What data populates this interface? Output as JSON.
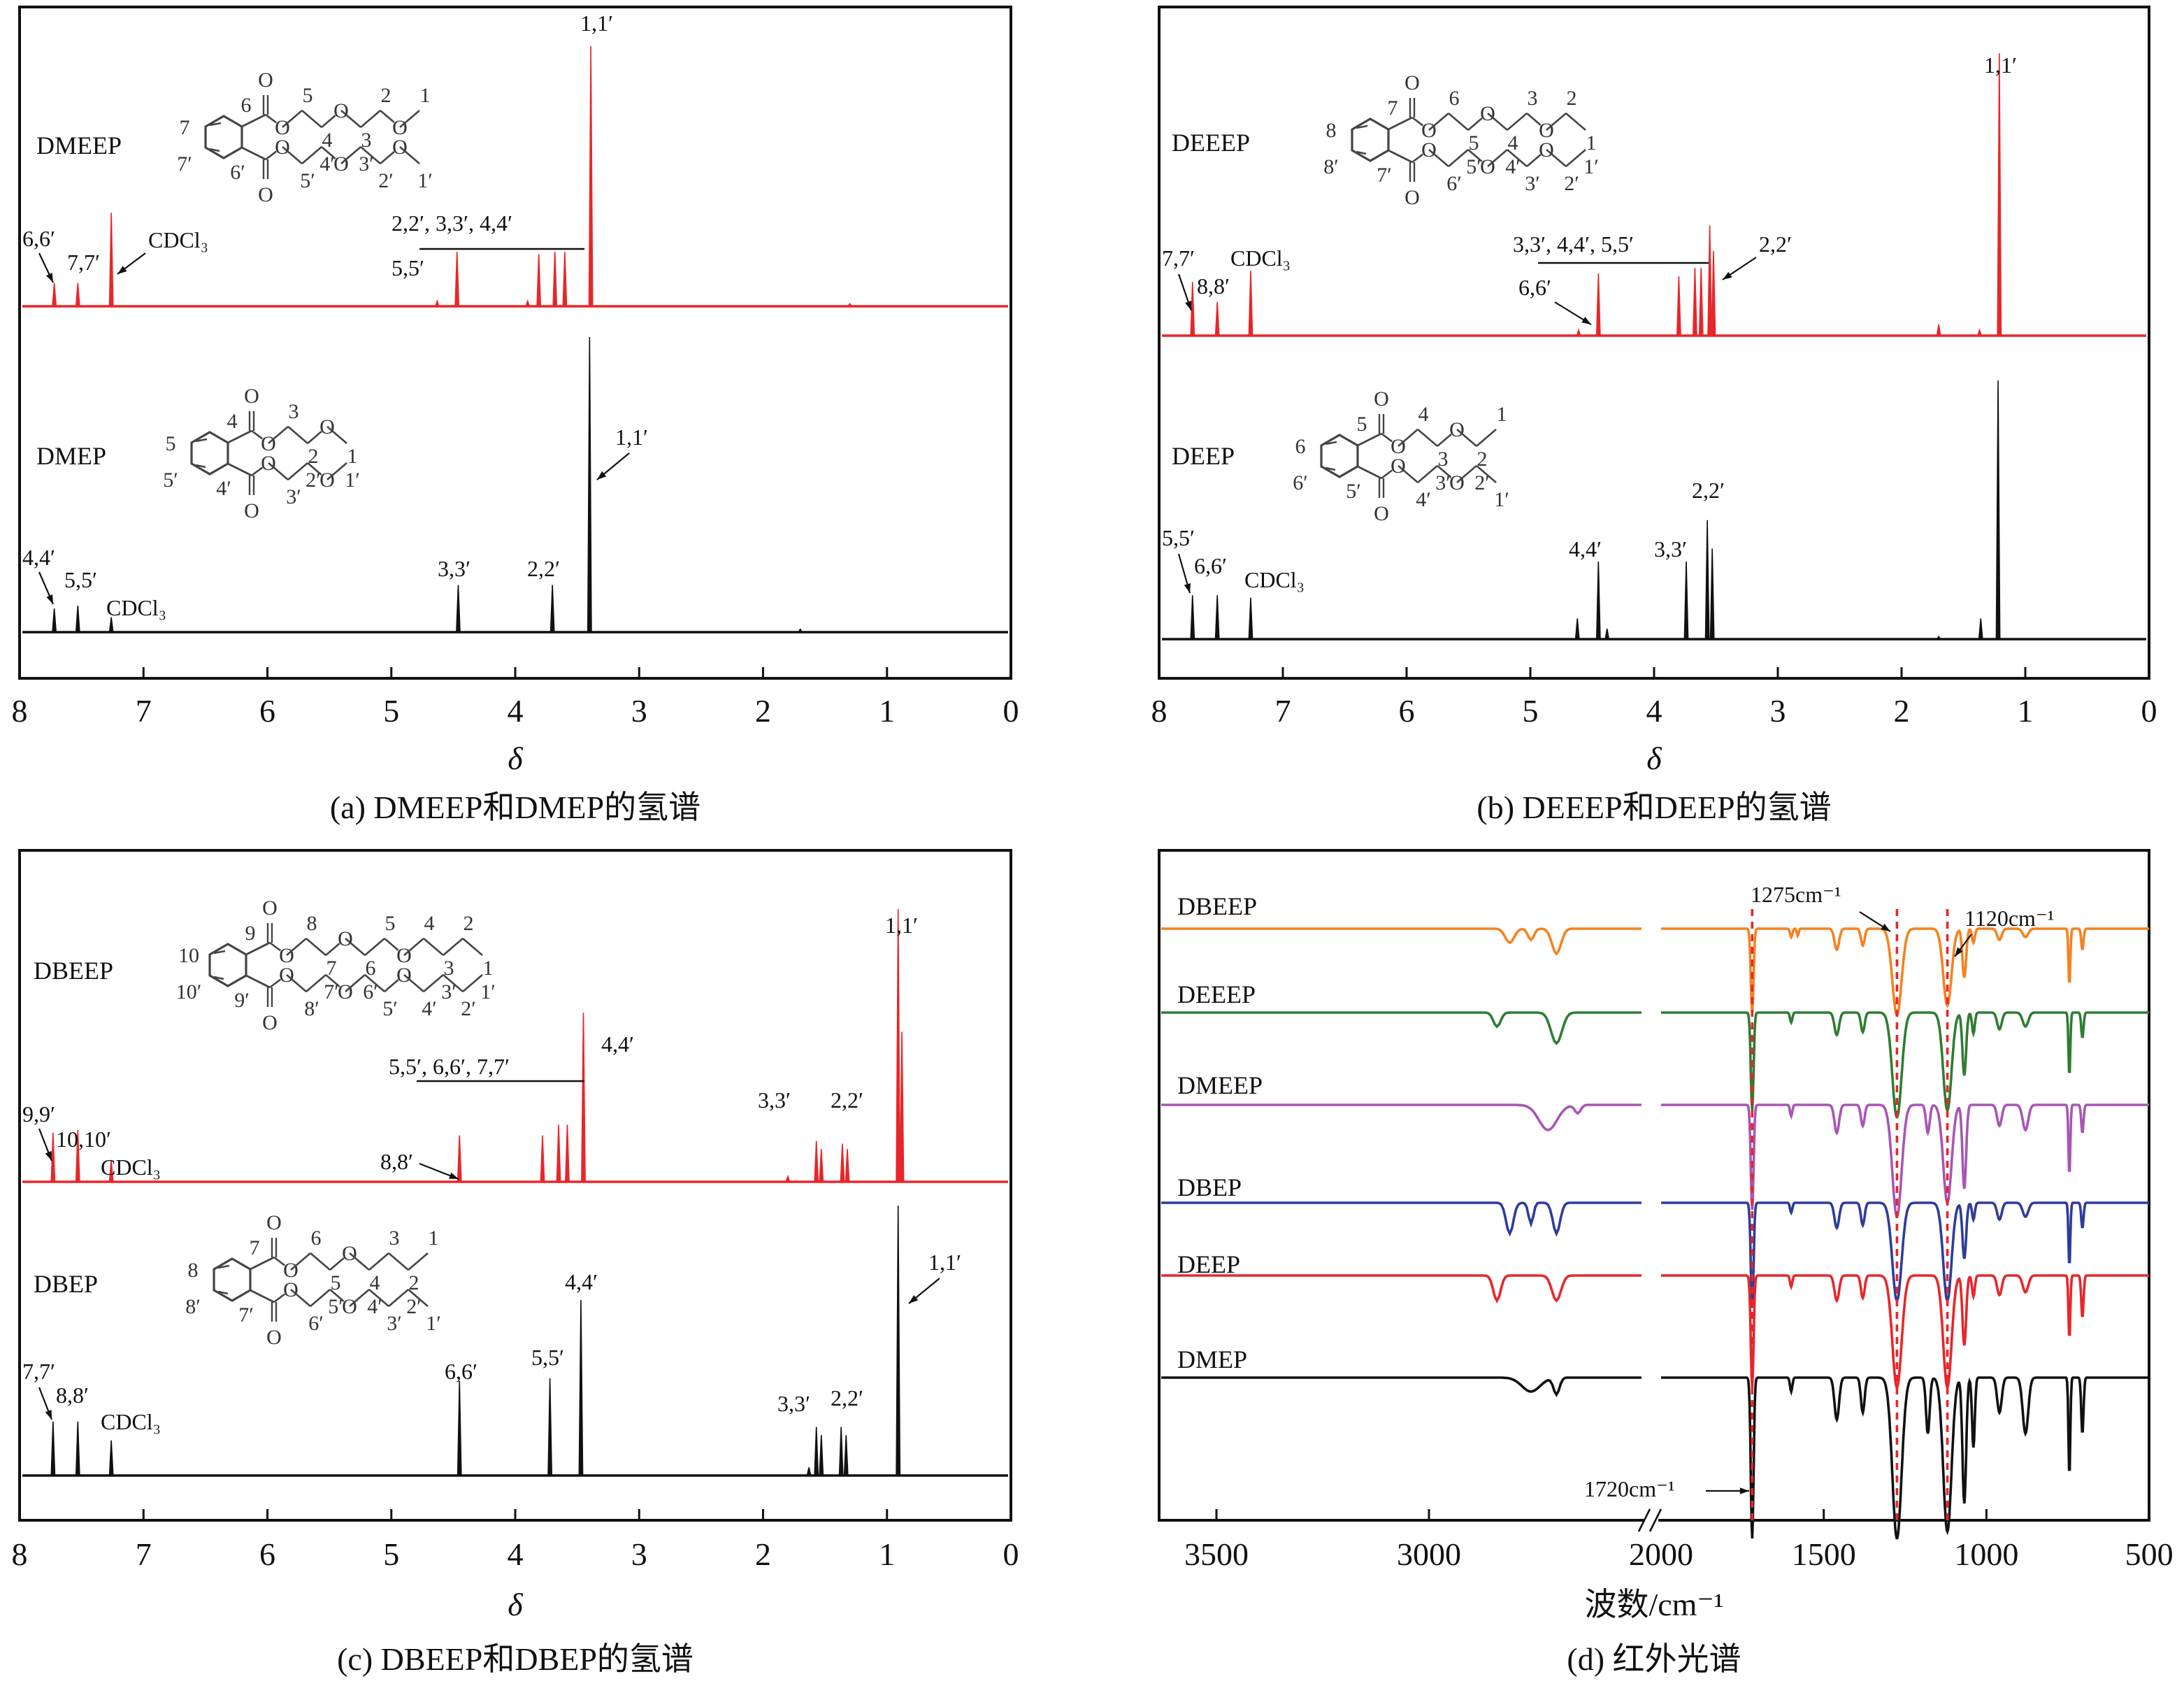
{
  "chart_data": [
    {
      "type": "line",
      "panel": "a",
      "caption": "(a) DMEEP和DMEP的氢谱",
      "xlabel": "δ",
      "xlim": [
        8,
        0
      ],
      "xticks": [
        "8",
        "7",
        "6",
        "5",
        "4",
        "3",
        "2",
        "1",
        "0"
      ],
      "series": [
        {
          "name": "DMEEP",
          "color": "#e8262a",
          "peaks": [
            [
              7.72,
              9
            ],
            [
              7.53,
              9
            ],
            [
              7.26,
              36
            ],
            [
              4.63,
              2
            ],
            [
              4.47,
              21
            ],
            [
              3.9,
              2
            ],
            [
              3.81,
              20
            ],
            [
              3.68,
              21
            ],
            [
              3.6,
              21
            ],
            [
              3.39,
              100
            ],
            [
              1.3,
              1
            ]
          ],
          "structure": {
            "ring": [
              "6",
              "7",
              "7′",
              "6′"
            ],
            "upper": [
              "O",
              "5",
              "4",
              "O",
              "3",
              "2",
              "O",
              "1"
            ],
            "lower": [
              "O",
              "5′",
              "4′",
              "O",
              "3′",
              "2′",
              "O",
              "1′"
            ],
            "carbonyl": "O"
          },
          "annotations": [
            "1,1′",
            "6,6′",
            "7,7′",
            "CDCl₃",
            "2,2′, 3,3′, 4,4′",
            "5,5′"
          ]
        },
        {
          "name": "DMEP",
          "color": "#111111",
          "peaks": [
            [
              7.72,
              8
            ],
            [
              7.53,
              9
            ],
            [
              7.26,
              5
            ],
            [
              4.46,
              16
            ],
            [
              3.7,
              16
            ],
            [
              3.4,
              100
            ],
            [
              1.7,
              1
            ]
          ],
          "structure": {
            "ring": [
              "4",
              "5",
              "5′",
              "4′"
            ],
            "upper": [
              "O",
              "3",
              "2",
              "O",
              "1"
            ],
            "lower": [
              "O",
              "3′",
              "2′",
              "O",
              "1′"
            ],
            "carbonyl": "O"
          },
          "annotations": [
            "1,1′",
            "4,4′",
            "5,5′",
            "CDCl₃",
            "3,3′",
            "2,2′"
          ]
        }
      ]
    },
    {
      "type": "line",
      "panel": "b",
      "caption": "(b) DEEEP和DEEP的氢谱",
      "xlabel": "δ",
      "xlim": [
        8,
        0
      ],
      "xticks": [
        "8",
        "7",
        "6",
        "5",
        "4",
        "3",
        "2",
        "1",
        "0"
      ],
      "series": [
        {
          "name": "DEEEP",
          "color": "#e8262a",
          "peaks": [
            [
              7.73,
              19
            ],
            [
              7.53,
              12
            ],
            [
              7.26,
              23
            ],
            [
              4.61,
              2
            ],
            [
              4.45,
              22
            ],
            [
              3.8,
              21
            ],
            [
              3.67,
              24
            ],
            [
              3.62,
              24
            ],
            [
              3.55,
              39
            ],
            [
              3.52,
              30
            ],
            [
              1.7,
              4
            ],
            [
              1.37,
              2
            ],
            [
              1.21,
              100
            ]
          ],
          "structure": {
            "ring": [
              "7",
              "8",
              "8′",
              "7′"
            ],
            "upper": [
              "O",
              "6",
              "5",
              "O",
              "4",
              "3",
              "O",
              "2",
              "1"
            ],
            "lower": [
              "O",
              "6′",
              "5′",
              "O",
              "4′",
              "3′",
              "O",
              "2′",
              "1′"
            ],
            "carbonyl": "O"
          },
          "annotations": [
            "1,1′",
            "7,7′",
            "8,8′",
            "CDCl₃",
            "3,3′, 4,4′, 5,5′",
            "6,6′",
            "2,2′"
          ]
        },
        {
          "name": "DEEP",
          "color": "#111111",
          "peaks": [
            [
              7.73,
              17
            ],
            [
              7.53,
              17
            ],
            [
              7.26,
              16
            ],
            [
              4.62,
              8
            ],
            [
              4.45,
              30
            ],
            [
              4.38,
              4
            ],
            [
              3.74,
              30
            ],
            [
              3.57,
              46
            ],
            [
              3.53,
              35
            ],
            [
              1.7,
              1
            ],
            [
              1.36,
              8
            ],
            [
              1.22,
              100
            ]
          ],
          "structure": {
            "ring": [
              "5",
              "6",
              "6′",
              "5′"
            ],
            "upper": [
              "O",
              "4",
              "3",
              "O",
              "2",
              "1"
            ],
            "lower": [
              "O",
              "4′",
              "3′",
              "O",
              "2′",
              "1′"
            ],
            "carbonyl": "O"
          },
          "annotations": [
            "5,5′",
            "6,6′",
            "CDCl₃",
            "4,4′",
            "3,3′",
            "2,2′"
          ]
        }
      ]
    },
    {
      "type": "line",
      "panel": "c",
      "caption": "(c) DBEEP和DBEP的氢谱",
      "xlabel": "δ",
      "xlim": [
        8,
        0
      ],
      "xticks": [
        "8",
        "7",
        "6",
        "5",
        "4",
        "3",
        "2",
        "1",
        "0"
      ],
      "series": [
        {
          "name": "DBEEP",
          "color": "#e8262a",
          "peaks": [
            [
              7.73,
              18
            ],
            [
              7.53,
              19
            ],
            [
              7.26,
              8
            ],
            [
              4.45,
              17
            ],
            [
              3.78,
              17
            ],
            [
              3.65,
              21
            ],
            [
              3.58,
              21
            ],
            [
              3.45,
              62
            ],
            [
              1.8,
              2
            ],
            [
              1.57,
              15
            ],
            [
              1.53,
              12
            ],
            [
              1.36,
              14
            ],
            [
              1.32,
              12
            ],
            [
              0.91,
              100
            ],
            [
              0.88,
              55
            ]
          ],
          "structure": {
            "ring": [
              "9",
              "10",
              "10′",
              "9′"
            ],
            "upper": [
              "O",
              "8",
              "7",
              "O",
              "6",
              "5",
              "O",
              "4",
              "3",
              "2",
              "1"
            ],
            "lower": [
              "O",
              "8′",
              "7′",
              "O",
              "6′",
              "5′",
              "O",
              "4′",
              "3′",
              "2′",
              "1′"
            ],
            "carbonyl": "O"
          },
          "annotations": [
            "1,1′",
            "9,9′",
            "10,10′",
            "CDCl₃",
            "5,5′, 6,6′, 7,7′",
            "8,8′",
            "4,4′",
            "3,3′",
            "2,2′"
          ]
        },
        {
          "name": "DBEP",
          "color": "#111111",
          "peaks": [
            [
              7.73,
              20
            ],
            [
              7.53,
              20
            ],
            [
              7.26,
              13
            ],
            [
              4.45,
              35
            ],
            [
              3.72,
              36
            ],
            [
              3.47,
              65
            ],
            [
              1.63,
              3
            ],
            [
              1.57,
              18
            ],
            [
              1.53,
              15
            ],
            [
              1.37,
              18
            ],
            [
              1.33,
              15
            ],
            [
              0.91,
              100
            ]
          ],
          "structure": {
            "ring": [
              "7",
              "8",
              "8′",
              "7′"
            ],
            "upper": [
              "O",
              "6",
              "5",
              "O",
              "4",
              "3",
              "2",
              "1"
            ],
            "lower": [
              "O",
              "6′",
              "5′",
              "O",
              "4′",
              "3′",
              "2′",
              "1′"
            ],
            "carbonyl": "O"
          },
          "annotations": [
            "1,1′",
            "7,7′",
            "8,8′",
            "CDCl₃",
            "6,6′",
            "5,5′",
            "4,4′",
            "3,3′",
            "2,2′"
          ]
        }
      ]
    },
    {
      "type": "line",
      "panel": "d",
      "caption": "(d) 红外光谱",
      "xlabel": "波数/cm⁻¹",
      "xticks": [
        "3500",
        "3000",
        "2000",
        "1500",
        "1000",
        "500"
      ],
      "axis_break": [
        2480,
        2030
      ],
      "series": [
        {
          "name": "DBEEP",
          "color": "#f58220",
          "peaks": [
            [
              2810,
              10,
              15
            ],
            [
              2760,
              8,
              10
            ],
            [
              2700,
              18,
              15
            ],
            [
              1720,
              60,
              6
            ],
            [
              1600,
              6,
              5
            ],
            [
              1580,
              5,
              4
            ],
            [
              1460,
              15,
              10
            ],
            [
              1380,
              12,
              8
            ],
            [
              1275,
              62,
              20
            ],
            [
              1120,
              55,
              18
            ],
            [
              1068,
              35,
              8
            ],
            [
              1040,
              10,
              6
            ],
            [
              960,
              8,
              10
            ],
            [
              880,
              6,
              12
            ],
            [
              745,
              40,
              4
            ],
            [
              705,
              15,
              5
            ]
          ]
        },
        {
          "name": "DEEEP",
          "color": "#2e7d32",
          "peaks": [
            [
              2840,
              10,
              12
            ],
            [
              2700,
              22,
              18
            ],
            [
              1720,
              70,
              6
            ],
            [
              1600,
              7,
              5
            ],
            [
              1460,
              16,
              10
            ],
            [
              1380,
              14,
              8
            ],
            [
              1275,
              75,
              20
            ],
            [
              1120,
              70,
              18
            ],
            [
              1068,
              45,
              8
            ],
            [
              1040,
              15,
              6
            ],
            [
              960,
              12,
              10
            ],
            [
              880,
              10,
              12
            ],
            [
              745,
              45,
              4
            ],
            [
              705,
              18,
              5
            ]
          ]
        },
        {
          "name": "DMEEP",
          "color": "#a855b5",
          "peaks": [
            [
              2720,
              18,
              30
            ],
            [
              2650,
              6,
              10
            ],
            [
              1720,
              75,
              6
            ],
            [
              1600,
              8,
              5
            ],
            [
              1460,
              20,
              10
            ],
            [
              1380,
              15,
              8
            ],
            [
              1275,
              80,
              20
            ],
            [
              1180,
              20,
              8
            ],
            [
              1120,
              70,
              18
            ],
            [
              1068,
              60,
              8
            ],
            [
              960,
              15,
              10
            ],
            [
              880,
              18,
              12
            ],
            [
              745,
              50,
              4
            ],
            [
              705,
              20,
              5
            ]
          ]
        },
        {
          "name": "DBEP",
          "color": "#2e3c9a",
          "peaks": [
            [
              2810,
              22,
              12
            ],
            [
              2760,
              15,
              8
            ],
            [
              2700,
              22,
              12
            ],
            [
              1720,
              75,
              6
            ],
            [
              1600,
              7,
              5
            ],
            [
              1460,
              18,
              10
            ],
            [
              1380,
              16,
              8
            ],
            [
              1275,
              70,
              20
            ],
            [
              1120,
              70,
              18
            ],
            [
              1068,
              40,
              8
            ],
            [
              1040,
              12,
              6
            ],
            [
              960,
              12,
              10
            ],
            [
              880,
              10,
              12
            ],
            [
              745,
              45,
              4
            ],
            [
              705,
              18,
              5
            ]
          ]
        },
        {
          "name": "DEEP",
          "color": "#e8262a",
          "peaks": [
            [
              2840,
              18,
              12
            ],
            [
              2700,
              18,
              15
            ],
            [
              1720,
              80,
              6
            ],
            [
              1600,
              8,
              5
            ],
            [
              1460,
              18,
              10
            ],
            [
              1380,
              16,
              8
            ],
            [
              1275,
              80,
              20
            ],
            [
              1120,
              80,
              18
            ],
            [
              1068,
              50,
              8
            ],
            [
              1040,
              15,
              6
            ],
            [
              960,
              14,
              10
            ],
            [
              880,
              12,
              12
            ],
            [
              745,
              45,
              4
            ],
            [
              705,
              30,
              5
            ]
          ]
        },
        {
          "name": "DMEP",
          "color": "#111111",
          "peaks": [
            [
              2760,
              10,
              30
            ],
            [
              2700,
              12,
              10
            ],
            [
              1720,
              115,
              6
            ],
            [
              1600,
              10,
              5
            ],
            [
              1460,
              30,
              10
            ],
            [
              1380,
              25,
              8
            ],
            [
              1275,
              115,
              20
            ],
            [
              1180,
              40,
              8
            ],
            [
              1120,
              110,
              18
            ],
            [
              1068,
              90,
              8
            ],
            [
              1040,
              50,
              6
            ],
            [
              960,
              25,
              10
            ],
            [
              880,
              40,
              12
            ],
            [
              745,
              70,
              4
            ],
            [
              705,
              40,
              5
            ]
          ]
        }
      ],
      "markers": [
        {
          "label": "1275cm⁻¹",
          "value": 1275
        },
        {
          "label": "1120cm⁻¹",
          "value": 1120
        },
        {
          "label": "1720cm⁻¹",
          "value": 1720
        }
      ],
      "marker_color": "#e8262a"
    }
  ]
}
